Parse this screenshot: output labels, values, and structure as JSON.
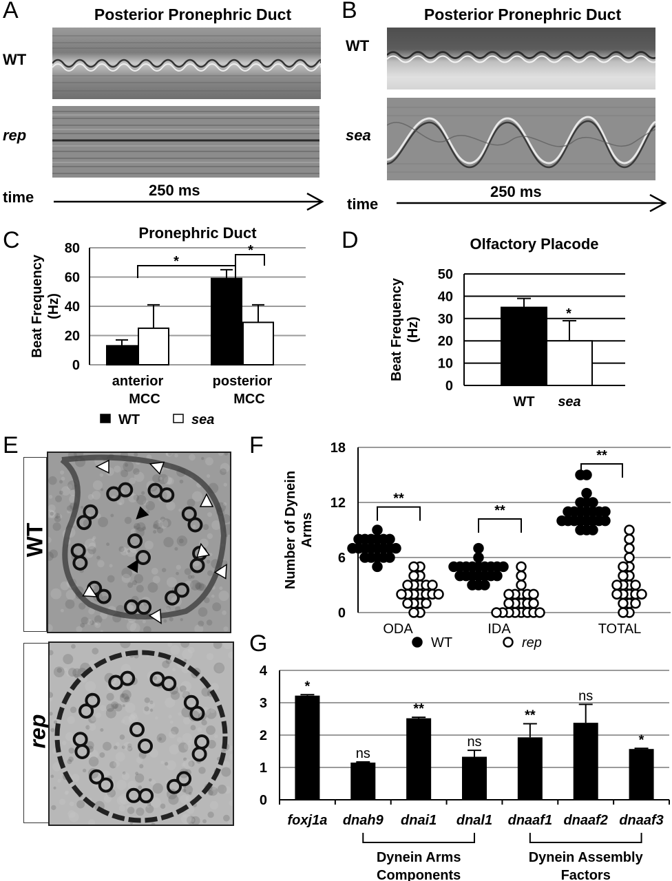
{
  "panels": {
    "A": {
      "letter": "A",
      "title": "Posterior Pronephric Duct",
      "rows": [
        "WT",
        "rep"
      ],
      "time_label": "time",
      "duration": "250 ms"
    },
    "B": {
      "letter": "B",
      "title": "Posterior Pronephric Duct",
      "rows": [
        "WT",
        "sea"
      ],
      "time_label": "time",
      "duration": "250 ms"
    },
    "E": {
      "letter": "E",
      "rows": [
        "WT",
        "rep"
      ]
    }
  },
  "chart_data": [
    {
      "id": "C",
      "letter": "C",
      "type": "bar",
      "title": "Pronephric Duct",
      "ylabel_lines": [
        "Beat Frequency",
        "(Hz)"
      ],
      "ylim": [
        0,
        80
      ],
      "yticks": [
        0,
        20,
        40,
        60,
        80
      ],
      "grid": true,
      "categories": [
        [
          "anterior",
          "MCC"
        ],
        [
          "posterior",
          "MCC"
        ]
      ],
      "series": [
        {
          "name": "WT",
          "color": "#000000",
          "values": [
            13,
            59
          ],
          "errors": [
            4,
            6
          ]
        },
        {
          "name": "sea",
          "color": "#ffffff",
          "values": [
            25,
            29
          ],
          "errors": [
            16,
            12
          ]
        }
      ],
      "significance": [
        {
          "label": "*",
          "between": "anterior MCC vs posterior MCC"
        },
        {
          "label": "*",
          "between": "posterior MCC WT vs sea"
        }
      ],
      "legend": [
        {
          "label": "WT",
          "swatch": "#000000",
          "italic": false
        },
        {
          "label": "sea",
          "swatch": "#ffffff",
          "italic": true
        }
      ]
    },
    {
      "id": "D",
      "letter": "D",
      "type": "bar",
      "title": "Olfactory Placode",
      "ylabel_lines": [
        "Beat Frequency",
        "(Hz)"
      ],
      "ylim": [
        0,
        50
      ],
      "yticks": [
        0,
        10,
        20,
        30,
        40,
        50
      ],
      "grid": true,
      "categories": [
        "WT",
        "sea"
      ],
      "values": [
        35,
        20
      ],
      "errors": [
        4,
        9
      ],
      "colors": [
        "#000000",
        "#ffffff"
      ],
      "significance": [
        {
          "label": "*",
          "on": "sea"
        }
      ]
    },
    {
      "id": "F",
      "letter": "F",
      "type": "scatter",
      "ylabel_lines": [
        "Number of Dynein",
        "Arms"
      ],
      "ylim": [
        0,
        18
      ],
      "yticks": [
        0,
        6,
        12,
        18
      ],
      "grid": true,
      "categories": [
        "ODA",
        "IDA",
        "TOTAL"
      ],
      "series": [
        {
          "name": "WT",
          "filled": true,
          "values": [
            [
              5,
              6,
              6,
              6,
              6,
              6,
              7,
              7,
              7,
              7,
              7,
              7,
              7,
              7,
              8,
              8,
              8,
              8,
              8,
              8,
              9
            ],
            [
              3,
              3,
              3,
              4,
              4,
              4,
              4,
              4,
              4,
              4,
              5,
              5,
              5,
              5,
              5,
              5,
              5,
              5,
              5,
              6,
              7
            ],
            [
              9,
              9,
              9,
              10,
              10,
              10,
              10,
              10,
              10,
              10,
              10,
              11,
              11,
              11,
              11,
              11,
              11,
              11,
              12,
              12,
              12,
              13,
              15,
              15
            ]
          ]
        },
        {
          "name": "rep",
          "filled": false,
          "values": [
            [
              0,
              0,
              1,
              1,
              1,
              1,
              2,
              2,
              2,
              2,
              2,
              2,
              2,
              3,
              3,
              3,
              3,
              3,
              4,
              4,
              5,
              5
            ],
            [
              0,
              0,
              0,
              0,
              0,
              0,
              0,
              0,
              1,
              1,
              1,
              1,
              1,
              2,
              2,
              2,
              2,
              2,
              3,
              4,
              5
            ],
            [
              0,
              0,
              1,
              1,
              1,
              2,
              2,
              2,
              2,
              2,
              3,
              3,
              3,
              3,
              4,
              4,
              5,
              5,
              6,
              7,
              8,
              9
            ]
          ]
        }
      ],
      "significance": [
        {
          "label": "**",
          "category": "ODA"
        },
        {
          "label": "**",
          "category": "IDA"
        },
        {
          "label": "**",
          "category": "TOTAL"
        }
      ],
      "legend": [
        {
          "label": "WT",
          "filled": true,
          "italic": false
        },
        {
          "label": "rep",
          "filled": false,
          "italic": true
        }
      ]
    },
    {
      "id": "G",
      "letter": "G",
      "type": "bar",
      "ylim": [
        0,
        4
      ],
      "yticks": [
        0,
        1,
        2,
        3,
        4
      ],
      "grid": true,
      "categories": [
        "foxj1a",
        "dnah9",
        "dnai1",
        "dnal1",
        "dnaaf1",
        "dnaaf2",
        "dnaaf3"
      ],
      "values": [
        3.22,
        1.15,
        2.52,
        1.33,
        1.93,
        2.38,
        1.57
      ],
      "errors": [
        0.03,
        0.02,
        0.03,
        0.2,
        0.42,
        0.57,
        0.02
      ],
      "significance": [
        "*",
        "ns",
        "**",
        "ns",
        "**",
        "ns",
        "*"
      ],
      "groups": [
        {
          "lines": [
            "Dynein Arms",
            "Components"
          ],
          "from": "dnah9",
          "to": "dnal1"
        },
        {
          "lines": [
            "Dynein Assembly",
            "Factors"
          ],
          "from": "dnaaf1",
          "to": "dnaaf3"
        }
      ]
    }
  ]
}
